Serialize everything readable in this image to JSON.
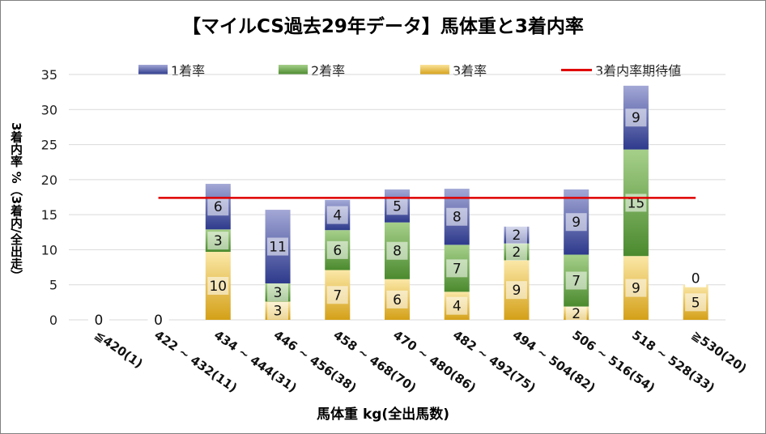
{
  "title": "【マイルCS過去29年データ】馬体重と3着内率",
  "xlabel": "馬体重 kg(全出馬数)",
  "ylabel": "3着内率 %（3着内/全出走）",
  "legend": {
    "first": "1着率",
    "second": "2着率",
    "third": "3着率",
    "line": "3着内率期待値"
  },
  "chart_data": {
    "type": "bar",
    "stacked": true,
    "title": "【マイルCS過去29年データ】馬体重と3着内率",
    "xlabel": "馬体重 kg(全出馬数)",
    "ylabel": "3着内率 %（3着内/全出走）",
    "ylim": [
      0,
      35
    ],
    "yticks": [
      0,
      5,
      10,
      15,
      20,
      25,
      30,
      35
    ],
    "grid": true,
    "legend_position": "top",
    "categories": [
      "≦420(1)",
      "422 ~ 432(11)",
      "434 ~ 444(31)",
      "446 ~ 456(38)",
      "458 ~ 468(70)",
      "470 ~ 480(86)",
      "482 ~ 492(75)",
      "494 ~ 504(82)",
      "506 ~ 516(54)",
      "518 ~ 528(33)",
      "≧530(20)"
    ],
    "series": [
      {
        "name": "3着率",
        "color": "#d4a017",
        "values": [
          0,
          0,
          9.7,
          2.6,
          7.1,
          5.8,
          4.0,
          8.5,
          1.9,
          9.1,
          5.0
        ],
        "counts": [
          0,
          0,
          10,
          3,
          7,
          6,
          4,
          9,
          2,
          9,
          5
        ]
      },
      {
        "name": "2着率",
        "color": "#5a9a3a",
        "values": [
          0,
          0,
          3.2,
          2.6,
          5.7,
          8.1,
          6.7,
          2.4,
          7.4,
          15.2,
          0
        ],
        "counts": [
          null,
          null,
          3,
          3,
          6,
          8,
          7,
          2,
          7,
          15,
          0
        ]
      },
      {
        "name": "1着率",
        "color": "#2e3a8c",
        "values": [
          0,
          0,
          6.5,
          10.5,
          4.3,
          4.7,
          8.0,
          2.4,
          9.3,
          9.1,
          0
        ],
        "counts": [
          null,
          null,
          6,
          11,
          4,
          5,
          8,
          2,
          9,
          9,
          null
        ]
      }
    ],
    "reference_line": {
      "name": "3着内率期待値",
      "value": 17.4,
      "color": "#e00000"
    }
  }
}
